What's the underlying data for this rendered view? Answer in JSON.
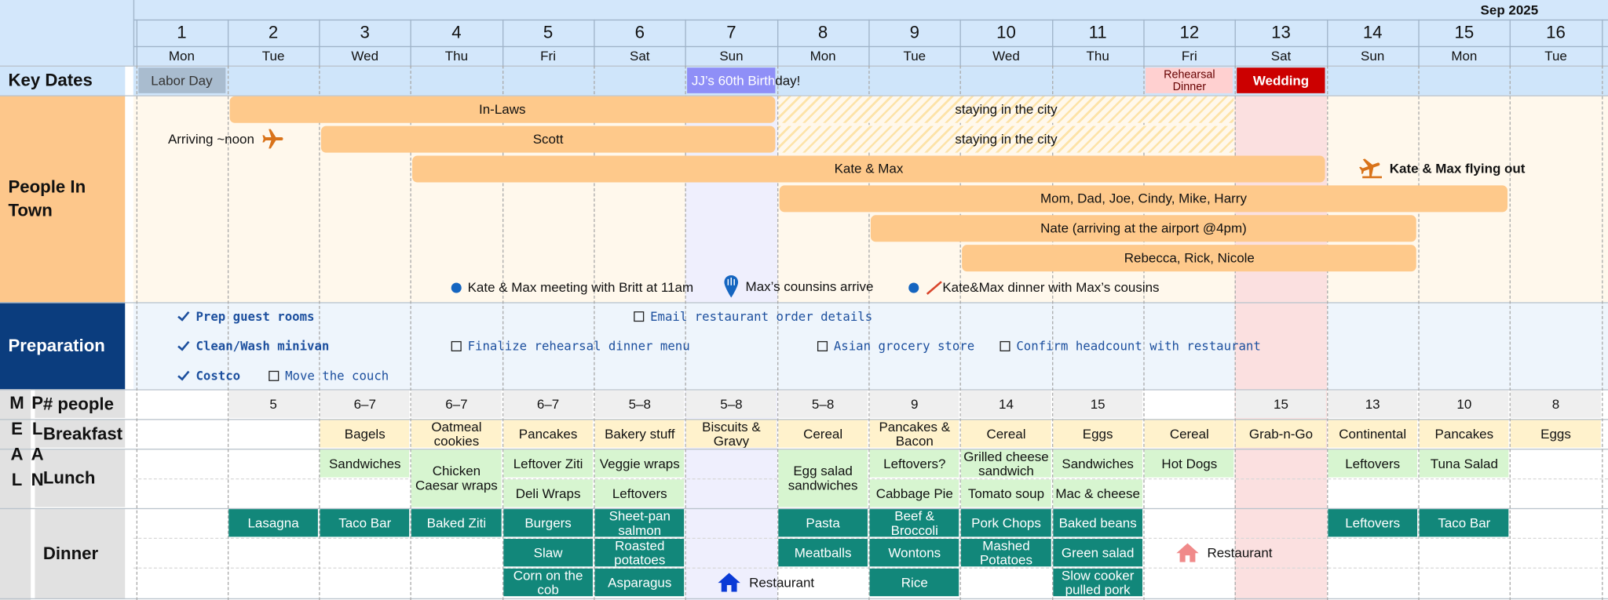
{
  "header": {
    "month": "Sep 2025",
    "days": [
      {
        "date": 1,
        "weekday": "Mon"
      },
      {
        "date": 2,
        "weekday": "Tue"
      },
      {
        "date": 3,
        "weekday": "Wed"
      },
      {
        "date": 4,
        "weekday": "Thu"
      },
      {
        "date": 5,
        "weekday": "Fri"
      },
      {
        "date": 6,
        "weekday": "Sat"
      },
      {
        "date": 7,
        "weekday": "Sun"
      },
      {
        "date": 8,
        "weekday": "Mon"
      },
      {
        "date": 9,
        "weekday": "Tue"
      },
      {
        "date": 10,
        "weekday": "Wed"
      },
      {
        "date": 11,
        "weekday": "Thu"
      },
      {
        "date": 12,
        "weekday": "Fri"
      },
      {
        "date": 13,
        "weekday": "Sat"
      },
      {
        "date": 14,
        "weekday": "Sun"
      },
      {
        "date": 15,
        "weekday": "Mon"
      },
      {
        "date": 16,
        "weekday": "Tue"
      }
    ]
  },
  "key_dates": {
    "label": "Key Dates",
    "events": [
      {
        "text": "Labor Day",
        "color": "#a9bccf"
      },
      {
        "text": "JJ’s 60th Birthday!",
        "color": "#8f8ff7"
      },
      {
        "text": "Rehearsal Dinner",
        "color": "#ffd0d0"
      },
      {
        "text": "Wedding",
        "color": "#cc0000"
      }
    ]
  },
  "people_in_town": {
    "label": "People In Town",
    "groups": [
      {
        "name": "In-Laws",
        "note": "staying in the city"
      },
      {
        "name": "Scott",
        "note": "staying in the city",
        "arrival": "Arriving ~noon"
      },
      {
        "name": "Kate & Max",
        "departure": "Kate & Max flying out"
      },
      {
        "name": "Mom, Dad, Joe, Cindy, Mike, Harry"
      },
      {
        "name": "Nate (arriving at the airport @4pm)"
      },
      {
        "name": "Rebecca, Rick, Nicole"
      }
    ],
    "events": [
      "Kate & Max meeting with Britt at 11am",
      "Max’s counsins arrive",
      "Kate&Max dinner with Max’s cousins"
    ]
  },
  "preparation": {
    "label": "Preparation",
    "tasks": [
      {
        "text": "Prep guest rooms",
        "done": true
      },
      {
        "text": "Email restaurant order details",
        "done": false
      },
      {
        "text": "Clean/Wash minivan",
        "done": true
      },
      {
        "text": "Finalize rehearsal dinner menu",
        "done": false
      },
      {
        "text": "Asian grocery store",
        "done": false
      },
      {
        "text": "Confirm headcount with restaurant",
        "done": false
      },
      {
        "text": "Costco",
        "done": true
      },
      {
        "text": "Move the couch",
        "done": false
      }
    ]
  },
  "meal_plan": {
    "label": "MEAL PLAN",
    "row_labels": {
      "people": "# people",
      "breakfast": "Breakfast",
      "lunch": "Lunch",
      "dinner": "Dinner"
    },
    "people": [
      null,
      "5",
      "6–7",
      "6–7",
      "6–7",
      "5–8",
      "5–8",
      "5–8",
      "9",
      "14",
      "15",
      null,
      "15",
      "13",
      "10",
      "8"
    ],
    "breakfast": [
      null,
      null,
      "Bagels",
      "Oatmeal cookies",
      "Pancakes",
      "Bakery stuff",
      "Biscuits & Gravy",
      "Cereal",
      "Pancakes & Bacon",
      "Cereal",
      "Eggs",
      "Cereal",
      "Grab-n-Go",
      "Continental",
      "Pancakes",
      "Eggs"
    ],
    "lunch": [
      [
        null,
        null
      ],
      [
        null,
        null
      ],
      [
        "Sandwiches",
        null
      ],
      [
        "Chicken Caesar wraps",
        null
      ],
      [
        "Leftover Ziti",
        "Deli Wraps"
      ],
      [
        "Veggie wraps",
        "Leftovers"
      ],
      [
        null,
        null
      ],
      [
        "Egg salad sandwiches",
        null
      ],
      [
        "Leftovers?",
        "Cabbage Pie"
      ],
      [
        "Grilled cheese sandwich",
        "Tomato soup"
      ],
      [
        "Sandwiches",
        "Mac & cheese"
      ],
      [
        "Hot Dogs",
        null
      ],
      [
        null,
        null
      ],
      [
        "Leftovers",
        null
      ],
      [
        "Tuna Salad",
        null
      ],
      [
        null,
        null
      ]
    ],
    "dinner": [
      [
        null,
        null,
        null
      ],
      [
        "Lasagna",
        null,
        null
      ],
      [
        "Taco Bar",
        null,
        null
      ],
      [
        "Baked Ziti",
        null,
        null
      ],
      [
        "Burgers",
        "Slaw",
        "Corn on the cob"
      ],
      [
        "Sheet-pan salmon",
        "Roasted potatoes",
        "Asparagus"
      ],
      [
        null,
        null,
        {
          "text": "Restaurant",
          "icon_color": "#0a3ad6"
        }
      ],
      [
        "Pasta",
        "Meatballs",
        null
      ],
      [
        "Beef & Broccoli",
        "Wontons",
        "Rice"
      ],
      [
        "Pork Chops",
        "Mashed Potatoes",
        null
      ],
      [
        "Baked beans",
        "Green salad",
        "Slow cooker pulled pork"
      ],
      [
        null,
        {
          "text": "Restaurant",
          "icon_color": "#f08a8a"
        },
        null
      ],
      [
        null,
        null,
        null
      ],
      [
        "Leftovers",
        null,
        null
      ],
      [
        "Taco Bar",
        null,
        null
      ],
      [
        null,
        null,
        null
      ]
    ]
  }
}
